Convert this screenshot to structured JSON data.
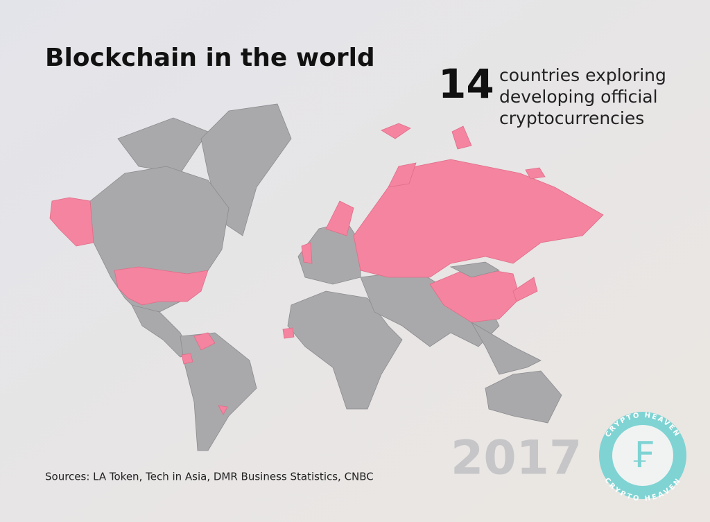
{
  "title": "Blockchain in the world",
  "stat": {
    "number": "14",
    "lines": [
      "countries exploring",
      "developing official",
      "cryptocurrencies"
    ]
  },
  "sources": "Sources: LA Token, Tech in Asia, DMR Business Statistics, CNBC",
  "year": "2017",
  "logo": {
    "top": "CRYPTO HEAVEN",
    "symbol": "₣",
    "bottom": "CRYPTO HEAVEN"
  }
}
